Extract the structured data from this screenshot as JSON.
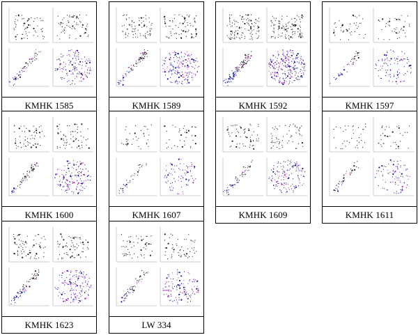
{
  "figure": {
    "colors": {
      "black_points": "#222222",
      "blue_points": "#1a1a99",
      "magenta_points": "#aa33aa",
      "frame": "#000000"
    }
  },
  "chart_data": [
    {
      "type": "scatter",
      "label": "KMHK 1585"
    },
    {
      "type": "scatter",
      "label": "KMHK 1589"
    },
    {
      "type": "scatter",
      "label": "KMHK 1592"
    },
    {
      "type": "scatter",
      "label": "KMHK 1597"
    },
    {
      "type": "scatter",
      "label": "KMHK 1600"
    },
    {
      "type": "scatter",
      "label": "KMHK 1607"
    },
    {
      "type": "scatter",
      "label": "KMHK 1609"
    },
    {
      "type": "scatter",
      "label": "KMHK 1611"
    },
    {
      "type": "scatter",
      "label": "KMHK 1623"
    },
    {
      "type": "scatter",
      "label": "LW 334"
    }
  ]
}
